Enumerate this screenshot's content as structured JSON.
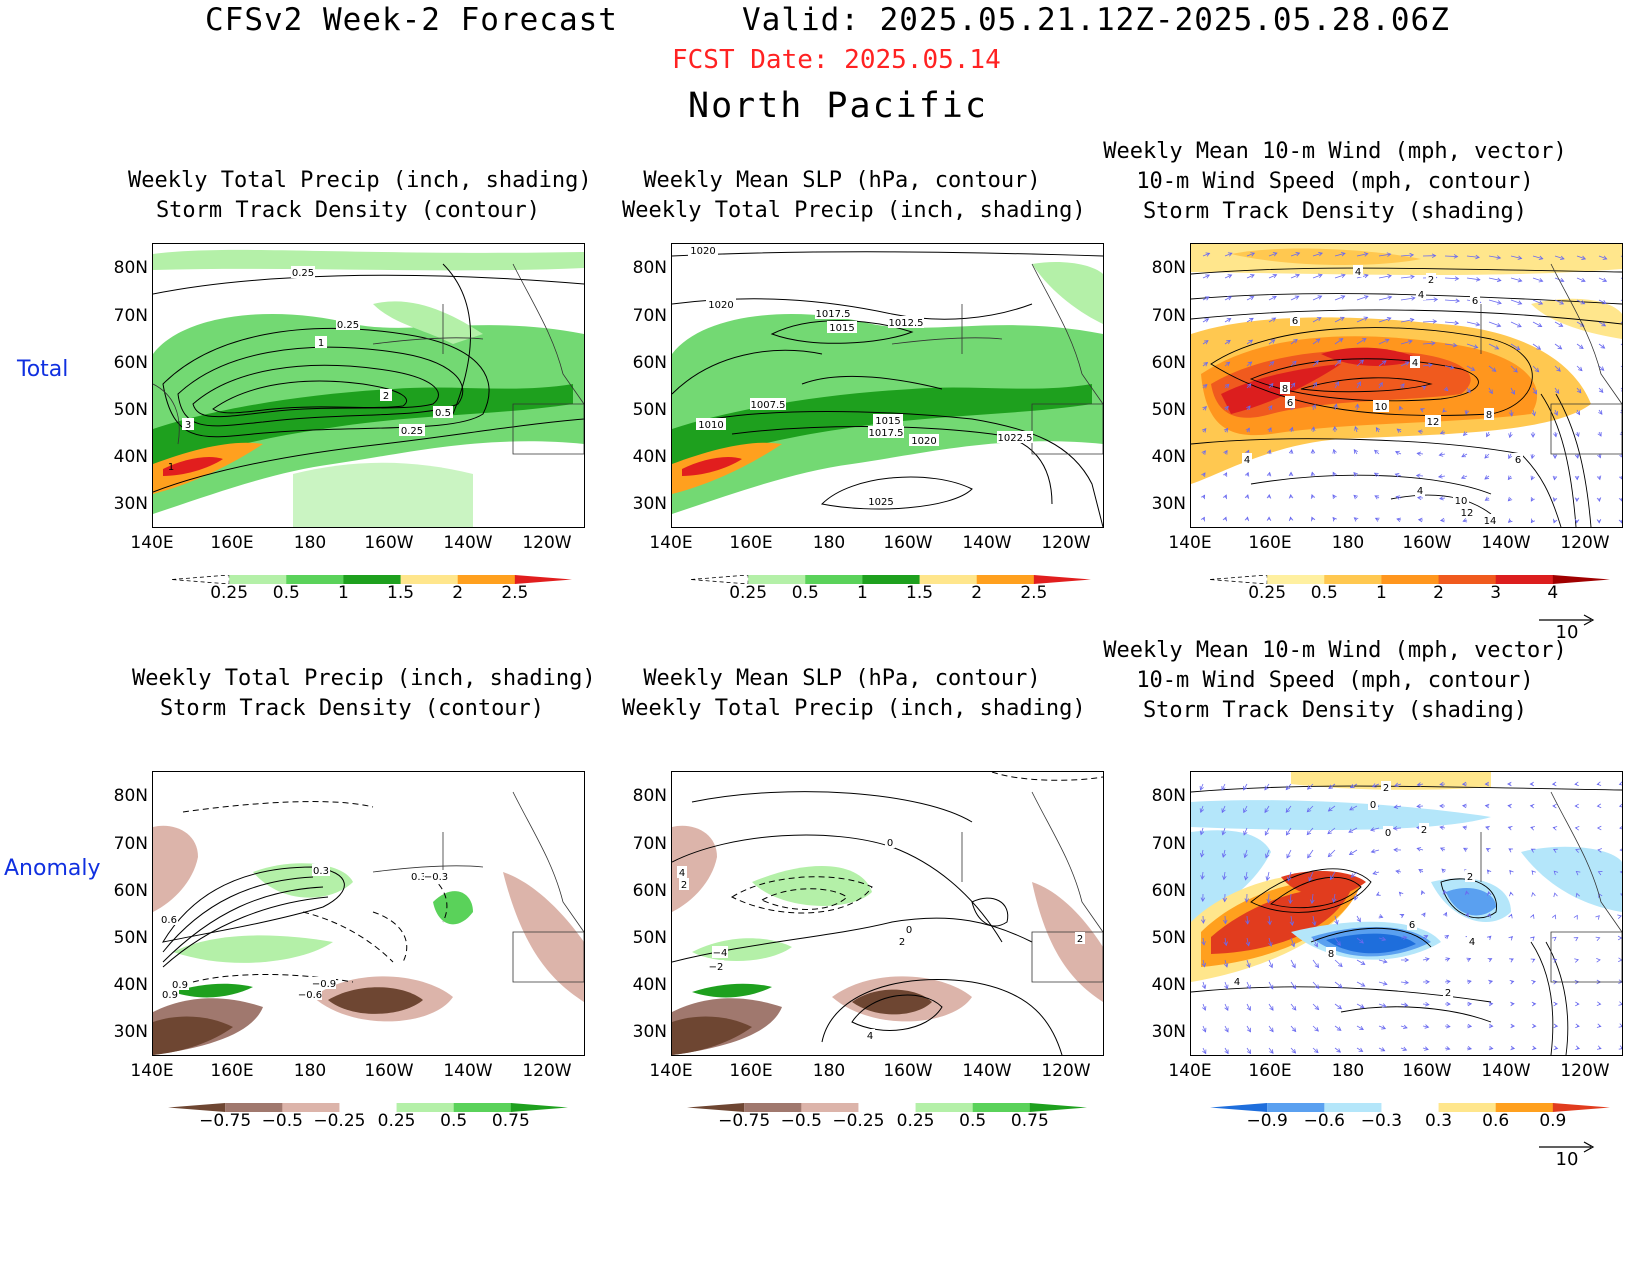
{
  "header": {
    "title": "CFSv2 Week-2 Forecast",
    "valid": "Valid: 2025.05.21.12Z-2025.05.28.06Z",
    "fcst_date": "FCST Date: 2025.05.14",
    "region": "North Pacific"
  },
  "rows": [
    {
      "label": "Total"
    },
    {
      "label": "Anomaly"
    }
  ],
  "panel_titles": {
    "precip_track": "Weekly Total Precip (inch, shading)\nStorm Track Density (contour)",
    "slp_precip": "Weekly Mean SLP (hPa, contour)\nWeekly Total Precip (inch, shading)",
    "wind_track": "Weekly Mean 10-m Wind (mph, vector)\n10-m Wind Speed (mph, contour)\nStorm Track Density (shading)"
  },
  "axes": {
    "lat_labels": [
      "80N",
      "70N",
      "60N",
      "50N",
      "40N",
      "30N"
    ],
    "lon_labels": [
      "140E",
      "160E",
      "180",
      "160W",
      "140W",
      "120W"
    ]
  },
  "colorbars": {
    "precip_total": {
      "labels": [
        "0.25",
        "0.5",
        "1",
        "1.5",
        "2",
        "2.5"
      ],
      "colors": [
        "#ffffff",
        "#b4f0a8",
        "#5ad25a",
        "#1ea01e",
        "#ffe68c",
        "#ffa01e",
        "#e11e1e"
      ]
    },
    "track_total": {
      "labels": [
        "0.25",
        "0.5",
        "1",
        "2",
        "3",
        "4"
      ],
      "colors": [
        "#ffffff",
        "#fff0a0",
        "#ffc850",
        "#ff961e",
        "#f05a1e",
        "#dc1e1e",
        "#a00000"
      ]
    },
    "precip_anom": {
      "labels": [
        "−0.75",
        "−0.5",
        "−0.25",
        "0.25",
        "0.5",
        "0.75"
      ],
      "colors": [
        "#6e4632",
        "#a0786e",
        "#dcb4aa",
        "#ffffff",
        "#b4f0a8",
        "#5ad25a",
        "#1ea01e"
      ]
    },
    "track_anom": {
      "labels": [
        "−0.9",
        "−0.6",
        "−0.3",
        "0.3",
        "0.6",
        "0.9"
      ],
      "colors": [
        "#1e6edc",
        "#5aa0f0",
        "#b4e6fa",
        "#ffffff",
        "#ffe68c",
        "#ffa01e",
        "#e13c1e"
      ]
    }
  },
  "reference_vector": {
    "label": "10"
  },
  "contour_labels": {
    "p1": [
      "0.25",
      "0.25",
      "1",
      "2",
      "3",
      "0.5",
      "0.25",
      "1"
    ],
    "p2": [
      "1020",
      "1020",
      "1017.5",
      "1015",
      "1012.5",
      "1007.5",
      "1010",
      "1015",
      "1017.5",
      "1020",
      "1022.5",
      "1025"
    ],
    "p3": [
      "4",
      "2",
      "4",
      "6",
      "6",
      "8",
      "6",
      "4",
      "10",
      "12",
      "8",
      "4",
      "6",
      "4",
      "12",
      "10",
      "14"
    ],
    "p4": [
      "0.3",
      "0.3",
      "0.6",
      "0.9",
      "−0.9",
      "−0.6",
      "0.9",
      "−0.3"
    ],
    "p5": [
      "0",
      "4",
      "2",
      "−4",
      "−2",
      "2",
      "0",
      "4",
      "2"
    ],
    "p6": [
      "2",
      "0",
      "0",
      "2",
      "2",
      "6",
      "8",
      "4",
      "4",
      "2"
    ]
  },
  "colors": {
    "title_red": "#ff2222",
    "row_label_blue": "#1030e0",
    "wind_vector": "#6a6af0"
  }
}
